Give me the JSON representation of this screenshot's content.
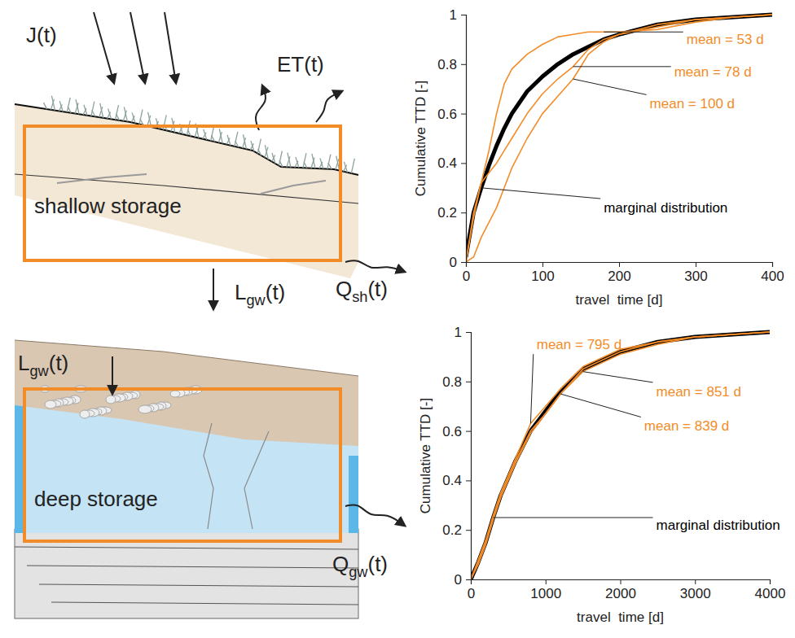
{
  "diagram": {
    "panels": [
      {
        "label": "shallow storage",
        "fluxes": [
          {
            "base": "J",
            "arg": "(t)"
          },
          {
            "base": "ET",
            "arg": "(t)"
          },
          {
            "base": "L",
            "sub": "gw",
            "arg": "(t)"
          },
          {
            "base": "Q",
            "sub": "sh",
            "arg": "(t)"
          }
        ]
      },
      {
        "label": "deep storage",
        "fluxes": [
          {
            "base": "L",
            "sub": "gw",
            "arg": "(t)"
          },
          {
            "base": "Q",
            "sub": "gw",
            "arg": "(t)"
          }
        ]
      }
    ]
  },
  "chart_data": [
    {
      "type": "line",
      "xlabel": "travel  time [d]",
      "ylabel": "Cumulative TTD [-]",
      "xlim": [
        0,
        400
      ],
      "ylim": [
        0,
        1
      ],
      "xticks": [
        0,
        100,
        200,
        300,
        400
      ],
      "yticks": [
        0,
        0.2,
        0.4,
        0.6,
        0.8,
        1
      ],
      "x": [
        0,
        10,
        20,
        30,
        40,
        50,
        60,
        80,
        100,
        120,
        140,
        160,
        180,
        200,
        250,
        300,
        350,
        400
      ],
      "series": [
        {
          "name": "marginal distribution",
          "color": "#000000",
          "values": [
            0.02,
            0.2,
            0.3,
            0.39,
            0.47,
            0.54,
            0.6,
            0.69,
            0.75,
            0.8,
            0.84,
            0.87,
            0.9,
            0.92,
            0.96,
            0.98,
            0.99,
            1.0
          ]
        },
        {
          "name": "mean = 53 d",
          "color": "#f28c28",
          "values": [
            0,
            0.2,
            0.32,
            0.45,
            0.6,
            0.72,
            0.78,
            0.84,
            0.88,
            0.91,
            0.92,
            0.93,
            0.93,
            0.93,
            0.94,
            0.97,
            0.99,
            1.0
          ]
        },
        {
          "name": "mean = 78 d",
          "color": "#f28c28",
          "values": [
            0,
            0.18,
            0.32,
            0.36,
            0.4,
            0.45,
            0.5,
            0.6,
            0.68,
            0.74,
            0.79,
            0.86,
            0.9,
            0.92,
            0.95,
            0.98,
            0.99,
            1.0
          ]
        },
        {
          "name": "mean = 100 d",
          "color": "#f28c28",
          "values": [
            0,
            0.02,
            0.1,
            0.16,
            0.22,
            0.3,
            0.38,
            0.5,
            0.6,
            0.67,
            0.74,
            0.84,
            0.89,
            0.92,
            0.96,
            0.98,
            0.99,
            1.0
          ]
        }
      ]
    },
    {
      "type": "line",
      "xlabel": "travel  time [d]",
      "ylabel": "Cumulative TTD [-]",
      "xlim": [
        0,
        4000
      ],
      "ylim": [
        0,
        1
      ],
      "xticks": [
        0,
        1000,
        2000,
        3000,
        4000
      ],
      "yticks": [
        0,
        0.2,
        0.4,
        0.6,
        0.8,
        1
      ],
      "x": [
        0,
        100,
        200,
        300,
        400,
        600,
        800,
        1000,
        1200,
        1500,
        2000,
        2500,
        3000,
        3500,
        4000
      ],
      "series": [
        {
          "name": "marginal distribution",
          "color": "#000000",
          "values": [
            0,
            0.07,
            0.15,
            0.25,
            0.34,
            0.48,
            0.6,
            0.68,
            0.76,
            0.85,
            0.92,
            0.96,
            0.98,
            0.99,
            1.0
          ]
        },
        {
          "name": "mean = 795 d",
          "color": "#f28c28",
          "values": [
            0,
            0.08,
            0.16,
            0.26,
            0.35,
            0.49,
            0.63,
            0.7,
            0.77,
            0.86,
            0.93,
            0.96,
            0.98,
            0.99,
            1.0
          ]
        },
        {
          "name": "mean = 851 d",
          "color": "#f28c28",
          "values": [
            0,
            0.06,
            0.14,
            0.24,
            0.33,
            0.47,
            0.59,
            0.67,
            0.75,
            0.84,
            0.91,
            0.95,
            0.98,
            0.99,
            1.0
          ]
        },
        {
          "name": "mean = 839 d",
          "color": "#f28c28",
          "values": [
            0,
            0.07,
            0.15,
            0.25,
            0.34,
            0.48,
            0.6,
            0.67,
            0.75,
            0.85,
            0.92,
            0.96,
            0.98,
            0.99,
            1.0
          ]
        }
      ]
    }
  ]
}
